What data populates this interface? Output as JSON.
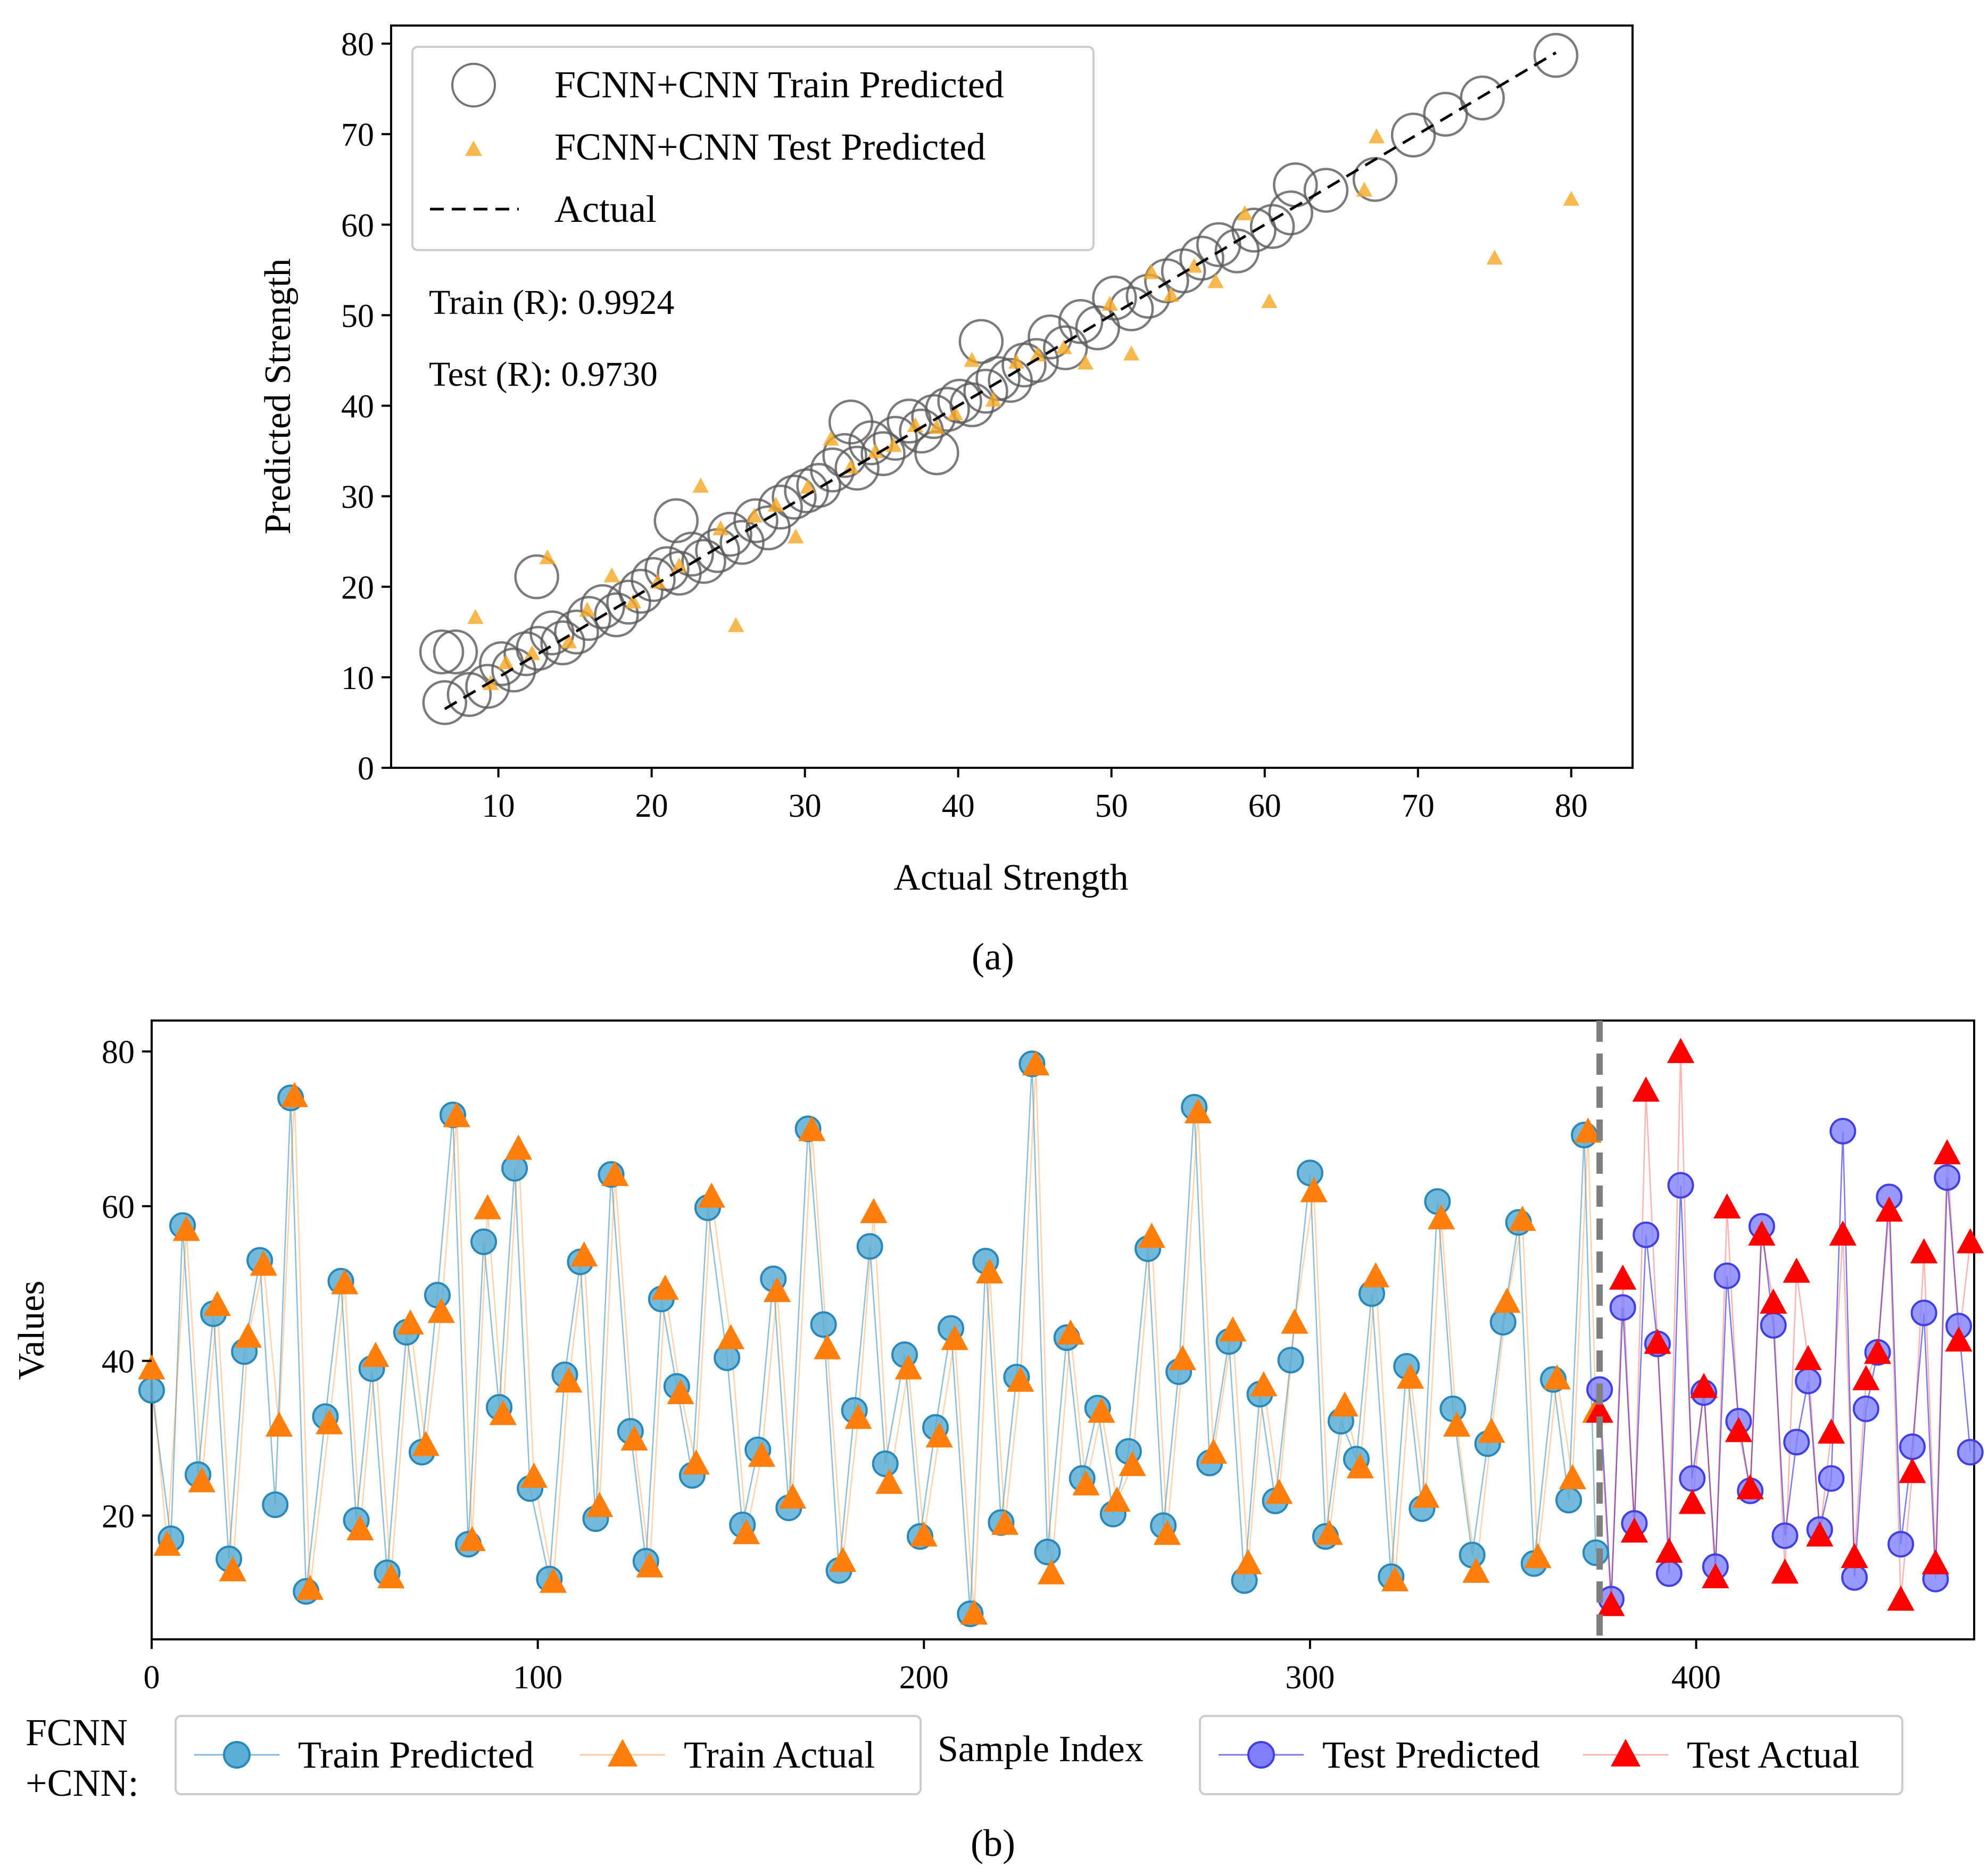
{
  "colors": {
    "train_circle_edge": "#5a5a5a",
    "test_triangle_a": "#f5a623",
    "train_pred_fill": "#5aaed6",
    "train_pred_edge": "#2a88b8",
    "train_actual": "#ff7f0e",
    "test_pred_fill": "#7f7fff",
    "test_pred_edge": "#4040e0",
    "test_actual": "#ff0000",
    "split_line": "#7f7f7f"
  },
  "panel_a": {
    "caption": "(a)",
    "legend": {
      "train": "FCNN+CNN Train Predicted",
      "test": "FCNN+CNN Test Predicted",
      "actual": "Actual"
    },
    "annotations": {
      "train_r": "Train (R): 0.9924",
      "test_r": "Test (R): 0.9730"
    }
  },
  "panel_b": {
    "caption": "(b)",
    "legend_prefix": "FCNN\n+CNN:",
    "legend_prefix_lines": [
      "FCNN",
      "+CNN:"
    ],
    "legend_left": {
      "train_predicted": "Train Predicted",
      "train_actual": "Train Actual"
    },
    "legend_right": {
      "test_predicted": "Test Predicted",
      "test_actual": "Test Actual"
    }
  },
  "chart_data": [
    {
      "type": "scatter",
      "xlabel": "Actual Strength",
      "ylabel": "Predicted Strength",
      "xlim": [
        3,
        84
      ],
      "ylim": [
        0,
        82
      ],
      "xticks": [
        10,
        20,
        30,
        40,
        50,
        60,
        70,
        80
      ],
      "yticks": [
        0,
        10,
        20,
        30,
        40,
        50,
        60,
        70,
        80
      ],
      "grid": false,
      "legend_position": "top-left",
      "series": [
        {
          "name": "FCNN+CNN Train Predicted",
          "marker": "open-circle",
          "x": [
            6.5,
            7.2,
            8.1,
            9.3,
            10.2,
            11.0,
            11.8,
            12.6,
            13.5,
            14.2,
            15.1,
            15.9,
            16.8,
            17.7,
            18.5,
            19.3,
            20.1,
            21.0,
            21.8,
            22.6,
            23.4,
            24.3,
            25.1,
            25.9,
            26.8,
            27.6,
            28.4,
            29.3,
            30.1,
            30.9,
            31.8,
            32.6,
            33.4,
            34.3,
            35.1,
            35.9,
            36.8,
            37.6,
            38.4,
            39.3,
            40.1,
            40.9,
            41.8,
            42.6,
            43.4,
            44.3,
            45.1,
            46.0,
            47.0,
            48.0,
            49.1,
            50.2,
            51.3,
            52.4,
            53.6,
            54.7,
            55.9,
            57.0,
            58.2,
            59.3,
            60.5,
            61.7,
            62.0,
            64.0,
            67.2,
            69.7,
            71.8,
            74.2,
            79.0,
            6.3,
            12.5,
            21.6,
            33.0,
            38.6,
            41.5
          ],
          "y": [
            7.2,
            12.8,
            8.1,
            9.0,
            11.5,
            10.8,
            12.6,
            13.2,
            14.9,
            13.8,
            15.0,
            16.5,
            17.8,
            16.9,
            18.3,
            19.5,
            20.8,
            22.0,
            21.5,
            23.6,
            22.8,
            24.0,
            25.8,
            24.9,
            27.3,
            26.5,
            28.8,
            29.9,
            30.6,
            31.2,
            32.9,
            34.5,
            33.1,
            35.9,
            34.7,
            36.4,
            38.3,
            37.2,
            38.8,
            39.6,
            40.5,
            40.1,
            41.6,
            43.0,
            42.8,
            44.5,
            45.0,
            47.6,
            46.4,
            49.3,
            48.6,
            51.9,
            50.7,
            52.1,
            53.8,
            54.9,
            56.3,
            57.8,
            57.1,
            59.4,
            59.8,
            61.3,
            64.4,
            63.8,
            65.0,
            69.9,
            72.2,
            74.0,
            78.7,
            12.8,
            21.1,
            27.3,
            38.2,
            34.8,
            47.1
          ]
        },
        {
          "name": "FCNN+CNN Test Predicted",
          "marker": "triangle",
          "x": [
            8.5,
            9.5,
            10.5,
            12.2,
            13.2,
            14.6,
            15.8,
            17.4,
            18.8,
            20.4,
            21.8,
            23.2,
            24.5,
            25.5,
            26.7,
            28.1,
            29.4,
            30.2,
            31.7,
            33.0,
            34.6,
            35.8,
            37.2,
            38.6,
            39.8,
            40.9,
            42.3,
            43.8,
            45.2,
            46.9,
            48.3,
            49.9,
            51.3,
            52.6,
            53.9,
            55.4,
            56.8,
            58.7,
            60.3,
            66.5,
            67.3,
            75.0,
            80.0
          ],
          "y": [
            16.6,
            9.3,
            11.6,
            12.6,
            23.2,
            13.9,
            17.4,
            21.2,
            18.3,
            20.5,
            22.3,
            31.1,
            26.4,
            15.7,
            27.8,
            29.0,
            25.5,
            31.0,
            36.3,
            33.2,
            34.9,
            35.6,
            37.8,
            37.6,
            39.1,
            45.0,
            40.6,
            44.8,
            45.6,
            46.4,
            44.7,
            51.2,
            45.7,
            54.7,
            52.2,
            55.4,
            53.7,
            61.2,
            51.5,
            63.8,
            69.7,
            56.3,
            62.8
          ]
        },
        {
          "name": "Actual",
          "marker": "dashed-line",
          "x": [
            6.5,
            79.0
          ],
          "y": [
            6.5,
            79.0
          ]
        }
      ]
    },
    {
      "type": "scatter",
      "xlabel": "Sample Index",
      "ylabel": "Values",
      "xlim": [
        0,
        472
      ],
      "ylim": [
        4,
        84
      ],
      "xticks": [
        0,
        100,
        200,
        300,
        400
      ],
      "yticks": [
        20,
        40,
        60,
        80
      ],
      "grid": false,
      "split_index": 375,
      "legend_position": "bottom",
      "series": [
        {
          "name": "Train Predicted",
          "marker": "circle-line",
          "x": [
            0,
            5,
            8,
            12,
            16,
            20,
            24,
            28,
            32,
            36,
            40,
            45,
            49,
            53,
            57,
            61,
            66,
            70,
            74,
            78,
            82,
            86,
            90,
            94,
            98,
            103,
            107,
            111,
            115,
            119,
            124,
            128,
            132,
            136,
            140,
            144,
            149,
            153,
            157,
            161,
            165,
            170,
            174,
            178,
            182,
            186,
            190,
            195,
            199,
            203,
            207,
            212,
            216,
            220,
            224,
            228,
            232,
            237,
            241,
            245,
            249,
            253,
            258,
            262,
            266,
            270,
            274,
            279,
            283,
            287,
            291,
            295,
            300,
            304,
            308,
            312,
            316,
            321,
            325,
            329,
            333,
            337,
            342,
            346,
            350,
            354,
            358,
            363,
            367,
            371,
            374
          ],
          "y": [
            36.2,
            17.0,
            57.5,
            25.3,
            46.1,
            14.4,
            41.2,
            53.0,
            21.4,
            74.0,
            10.2,
            32.8,
            50.3,
            19.4,
            39.0,
            12.6,
            43.7,
            28.2,
            48.5,
            71.8,
            16.3,
            55.4,
            34.0,
            64.9,
            23.5,
            11.8,
            38.2,
            52.8,
            19.6,
            64.1,
            30.9,
            14.1,
            48.0,
            36.7,
            25.2,
            59.8,
            40.4,
            18.8,
            28.5,
            50.6,
            21.0,
            70.0,
            44.7,
            12.9,
            33.6,
            54.8,
            26.7,
            40.8,
            17.3,
            31.4,
            44.2,
            7.3,
            52.9,
            19.1,
            37.9,
            78.4,
            15.3,
            43.0,
            24.8,
            33.9,
            20.2,
            28.3,
            54.5,
            18.7,
            38.6,
            72.8,
            26.8,
            42.5,
            11.6,
            35.7,
            21.9,
            40.1,
            64.3,
            17.3,
            32.2,
            27.3,
            48.7,
            12.1,
            39.3,
            20.9,
            60.6,
            33.8,
            14.9,
            29.3,
            45.0,
            57.9,
            13.8,
            37.6,
            22.0,
            69.2,
            15.2
          ]
        },
        {
          "name": "Train Actual",
          "marker": "triangle-line",
          "x": [
            0,
            4,
            9,
            13,
            17,
            21,
            25,
            29,
            33,
            37,
            41,
            46,
            50,
            54,
            58,
            62,
            67,
            71,
            75,
            79,
            83,
            87,
            91,
            95,
            99,
            104,
            108,
            112,
            116,
            120,
            125,
            129,
            133,
            137,
            141,
            145,
            150,
            154,
            158,
            162,
            166,
            171,
            175,
            179,
            183,
            187,
            191,
            196,
            200,
            204,
            208,
            213,
            217,
            221,
            225,
            229,
            233,
            238,
            242,
            246,
            250,
            254,
            259,
            263,
            267,
            271,
            275,
            280,
            284,
            288,
            292,
            296,
            301,
            305,
            309,
            313,
            317,
            322,
            326,
            330,
            334,
            338,
            343,
            347,
            351,
            355,
            359,
            364,
            368,
            372,
            374
          ],
          "y": [
            39.0,
            16.2,
            56.9,
            24.4,
            47.2,
            12.9,
            43.1,
            52.4,
            31.6,
            74.2,
            10.5,
            31.9,
            50.0,
            18.2,
            40.6,
            12.0,
            44.8,
            29.1,
            46.3,
            71.6,
            16.8,
            59.7,
            33.1,
            67.4,
            25.0,
            11.4,
            37.3,
            53.6,
            21.2,
            64.0,
            29.8,
            13.4,
            49.3,
            35.8,
            26.7,
            61.2,
            42.9,
            17.7,
            27.7,
            49.0,
            22.3,
            69.8,
            41.6,
            14.1,
            32.6,
            59.2,
            24.2,
            39.0,
            17.4,
            30.2,
            42.8,
            7.3,
            51.4,
            18.9,
            37.4,
            78.3,
            12.5,
            43.5,
            24.0,
            33.4,
            21.9,
            26.5,
            56.0,
            17.6,
            40.2,
            72.1,
            28.1,
            43.9,
            13.8,
            36.8,
            22.9,
            44.9,
            61.9,
            17.6,
            34.2,
            26.2,
            50.9,
            11.6,
            37.8,
            22.4,
            58.4,
            31.6,
            12.7,
            30.8,
            47.6,
            58.2,
            14.6,
            37.7,
            24.8,
            69.6,
            33.4
          ]
        },
        {
          "name": "Test Predicted",
          "marker": "circle-line",
          "x": [
            375,
            378,
            381,
            384,
            387,
            390,
            393,
            396,
            399,
            402,
            405,
            408,
            411,
            414,
            417,
            420,
            423,
            426,
            429,
            432,
            435,
            438,
            441,
            444,
            447,
            450,
            453,
            456,
            459,
            462,
            465,
            468,
            471
          ],
          "y": [
            36.3,
            9.2,
            46.9,
            19.0,
            56.3,
            42.2,
            12.5,
            62.7,
            24.8,
            35.9,
            13.4,
            51.0,
            32.2,
            23.2,
            57.4,
            44.6,
            17.4,
            29.5,
            37.4,
            18.2,
            24.8,
            69.7,
            12.0,
            33.8,
            41.1,
            61.2,
            16.3,
            28.9,
            46.2,
            11.8,
            63.7,
            44.5,
            28.2
          ]
        },
        {
          "name": "Test Actual",
          "marker": "triangle-line",
          "x": [
            375,
            378,
            381,
            384,
            387,
            390,
            393,
            396,
            399,
            402,
            405,
            408,
            411,
            414,
            417,
            420,
            423,
            426,
            429,
            432,
            435,
            438,
            441,
            444,
            447,
            450,
            453,
            456,
            459,
            462,
            465,
            468,
            471
          ],
          "y": [
            33.4,
            8.4,
            50.6,
            17.9,
            74.9,
            42.3,
            15.3,
            79.9,
            21.6,
            36.6,
            12.0,
            59.8,
            30.9,
            23.5,
            56.3,
            47.5,
            12.6,
            51.5,
            40.2,
            17.4,
            30.7,
            56.3,
            14.6,
            37.6,
            41.0,
            59.4,
            9.1,
            25.6,
            54.0,
            13.8,
            66.8,
            42.6,
            55.3
          ]
        }
      ]
    }
  ]
}
